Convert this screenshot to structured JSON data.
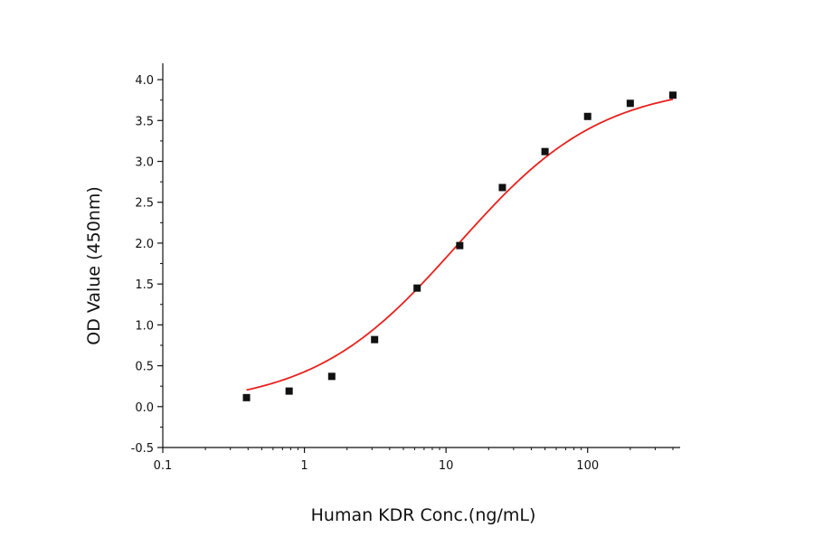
{
  "chart_data": {
    "type": "scatter",
    "title": "",
    "xlabel": "Human KDR Conc.(ng/mL)",
    "ylabel": "OD Value (450nm)",
    "xscale": "log",
    "xlim": [
      0.1,
      450
    ],
    "ylim": [
      -0.5,
      4.2
    ],
    "x_ticks": [
      {
        "value": 0.1,
        "label": "0.1"
      },
      {
        "value": 1,
        "label": "1"
      },
      {
        "value": 10,
        "label": "10"
      },
      {
        "value": 100,
        "label": "100"
      }
    ],
    "y_ticks": [
      {
        "value": -0.5,
        "label": "-0.5"
      },
      {
        "value": 0.0,
        "label": "0.0"
      },
      {
        "value": 0.5,
        "label": "0.5"
      },
      {
        "value": 1.0,
        "label": "1.0"
      },
      {
        "value": 1.5,
        "label": "1.5"
      },
      {
        "value": 2.0,
        "label": "2.0"
      },
      {
        "value": 2.5,
        "label": "2.5"
      },
      {
        "value": 3.0,
        "label": "3.0"
      },
      {
        "value": 3.5,
        "label": "3.5"
      },
      {
        "value": 4.0,
        "label": "4.0"
      }
    ],
    "grid": false,
    "series": [
      {
        "marker": "square",
        "color": "#111111",
        "x": [
          0.39,
          0.78,
          1.56,
          3.13,
          6.25,
          12.5,
          25,
          50,
          100,
          200,
          400
        ],
        "y": [
          0.11,
          0.19,
          0.37,
          0.82,
          1.45,
          1.97,
          2.68,
          3.12,
          3.55,
          3.71,
          3.81
        ]
      }
    ],
    "fit_curve": {
      "model": "4PL",
      "color": "#e8201c",
      "params": {
        "bottom": 0.0,
        "top": 3.95,
        "ec50": 12.0,
        "hill": 0.85
      },
      "x_range": [
        0.39,
        400
      ]
    }
  }
}
